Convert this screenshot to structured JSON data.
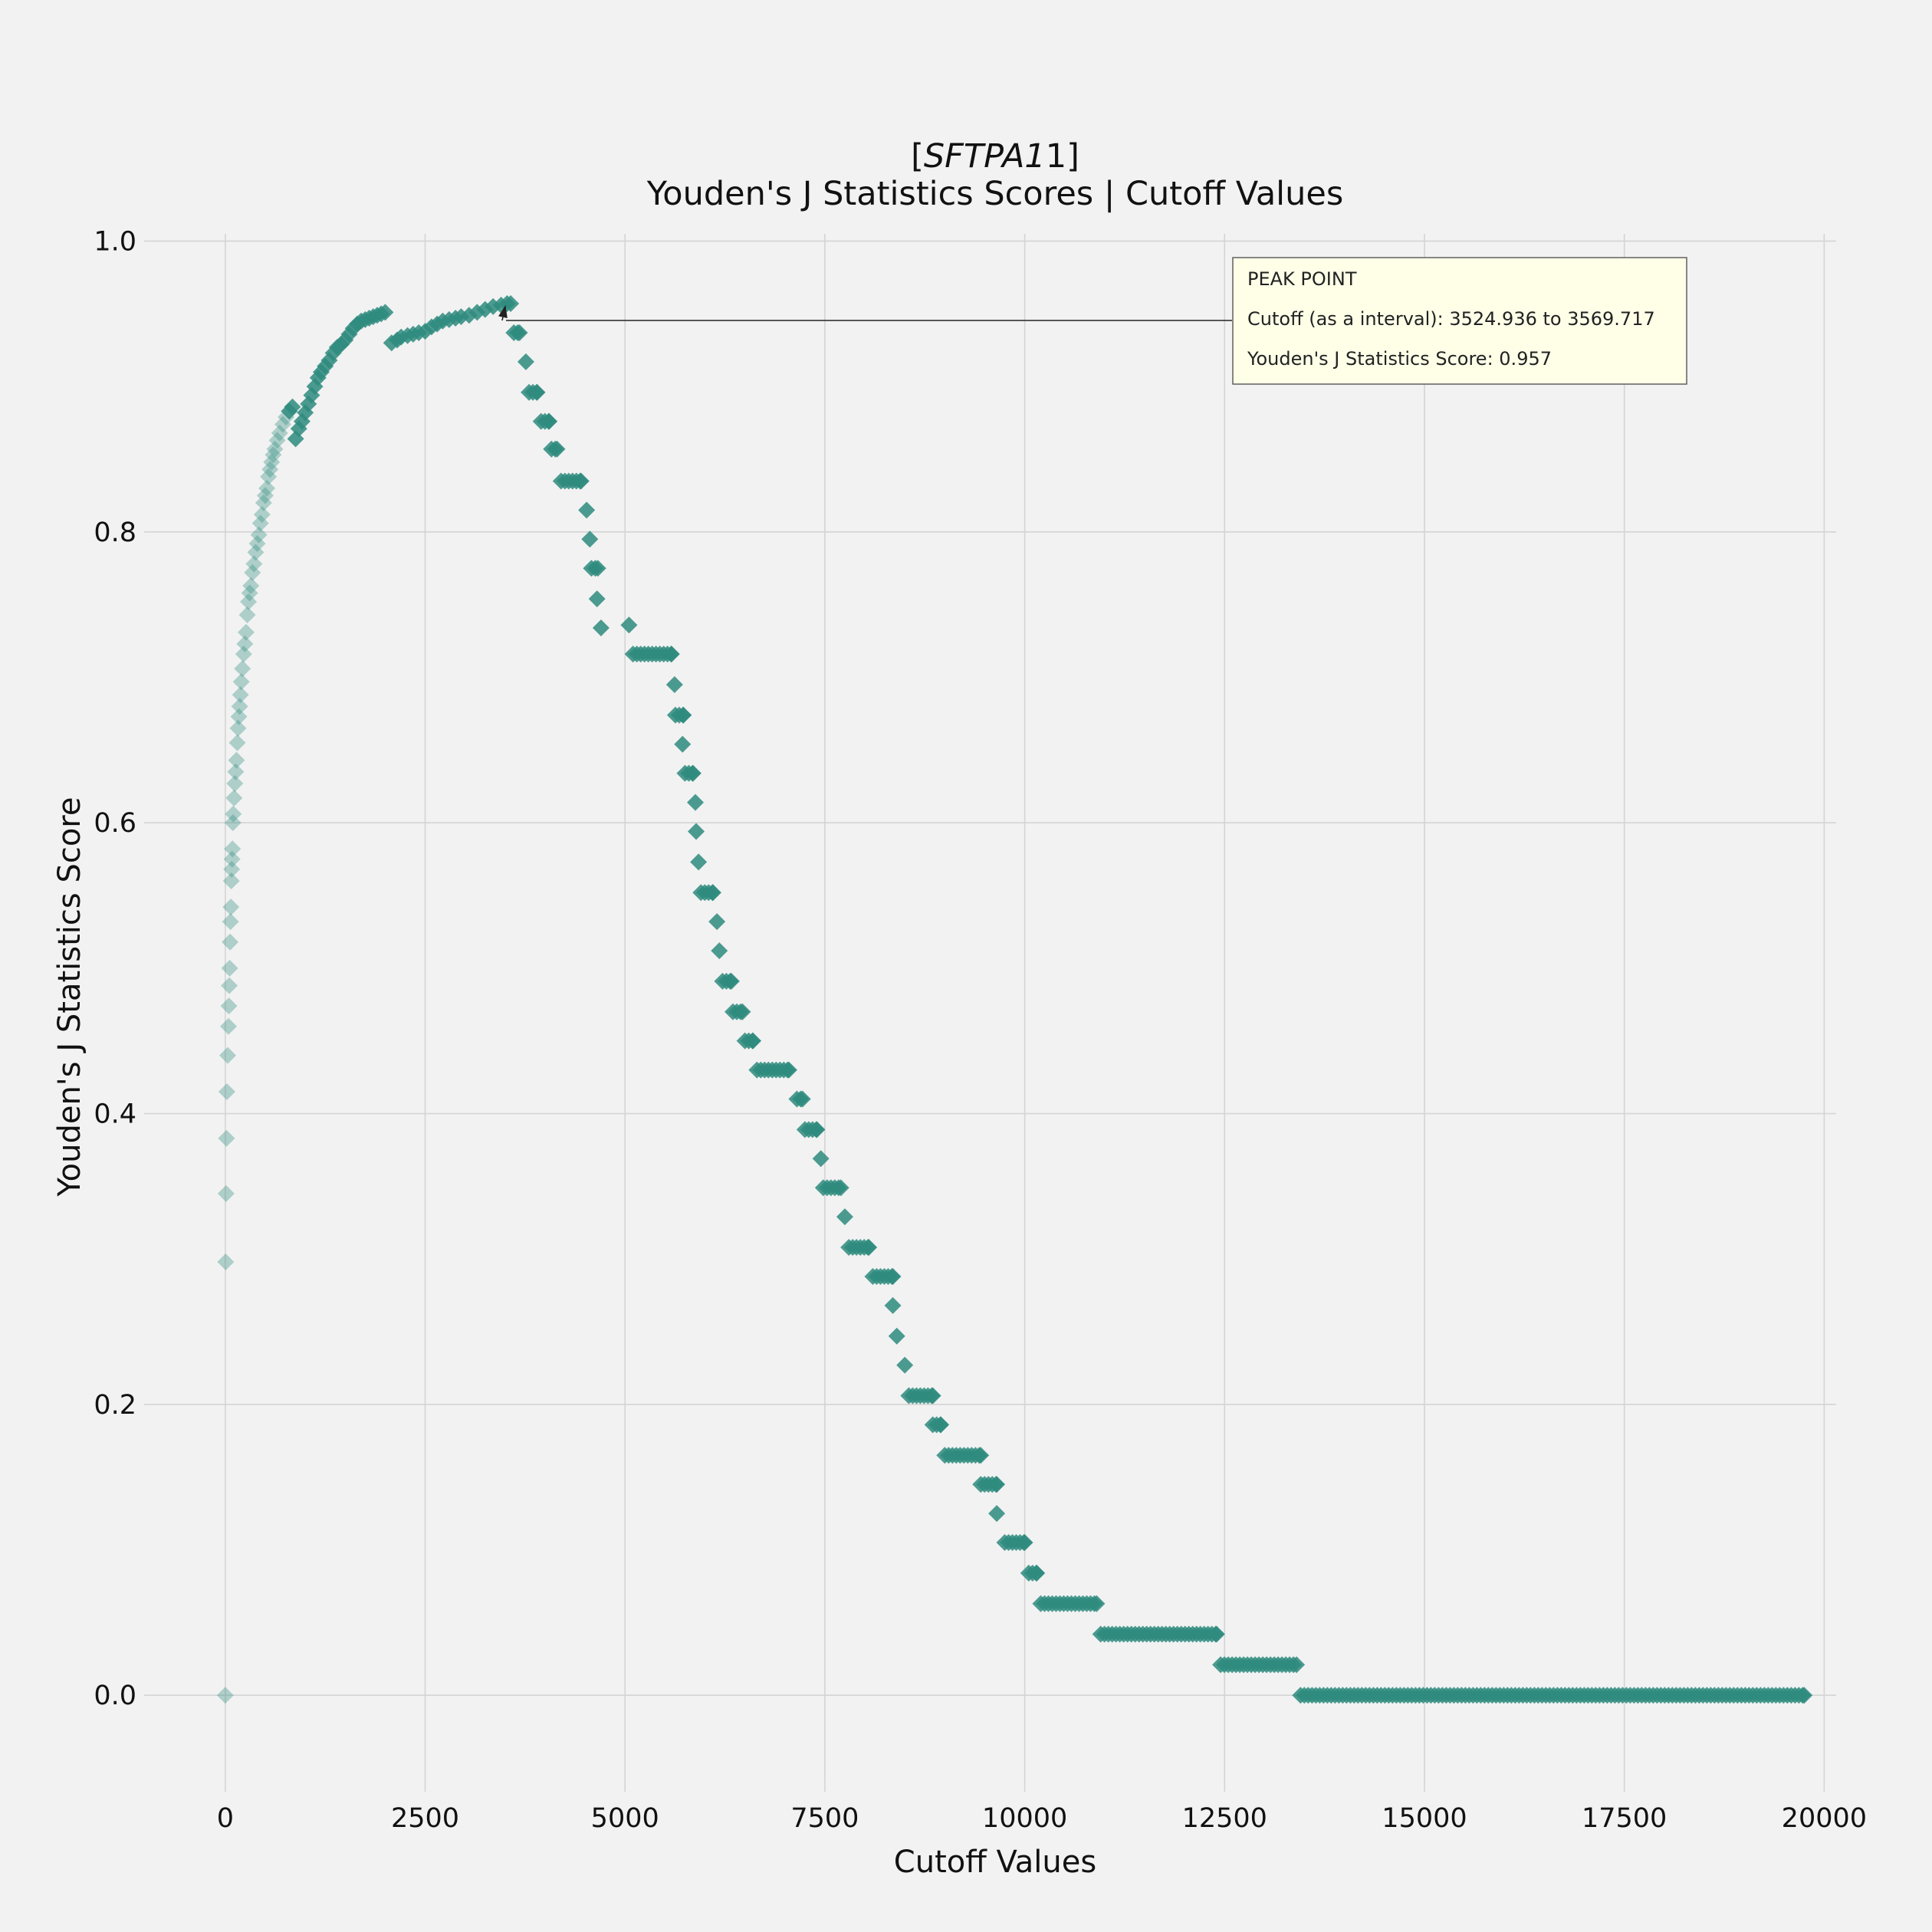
{
  "chart_data": {
    "type": "scatter",
    "title": "[SFTPA1]",
    "title_gene": "SFTPA1",
    "subtitle": "Youden's J Statistics Scores | Cutoff Values",
    "xlabel": "Cutoff Values",
    "ylabel": "Youden's J Statistics Score",
    "xlim": [
      -900,
      20150
    ],
    "ylim": [
      -0.06,
      1.005
    ],
    "xticks": [
      0,
      2500,
      5000,
      7500,
      10000,
      12500,
      15000,
      17500,
      20000
    ],
    "yticks": [
      "0.0",
      "0.2",
      "0.4",
      "0.6",
      "0.8",
      "1.0"
    ],
    "grid": true,
    "marker": "diamond",
    "color": "#2e8b7e",
    "series": [
      {
        "points": [
          [
            0,
            0.0
          ],
          [
            5,
            0.298
          ],
          [
            10,
            0.345
          ],
          [
            15,
            0.383
          ],
          [
            20,
            0.415
          ],
          [
            30,
            0.44
          ],
          [
            40,
            0.46
          ],
          [
            45,
            0.474
          ],
          [
            50,
            0.488
          ],
          [
            55,
            0.5
          ],
          [
            60,
            0.518
          ],
          [
            65,
            0.532
          ],
          [
            70,
            0.542
          ],
          [
            75,
            0.56
          ],
          [
            80,
            0.568
          ],
          [
            85,
            0.575
          ],
          [
            90,
            0.582
          ],
          [
            95,
            0.6
          ],
          [
            100,
            0.606
          ],
          [
            110,
            0.617
          ],
          [
            120,
            0.627
          ],
          [
            130,
            0.635
          ],
          [
            140,
            0.643
          ],
          [
            150,
            0.655
          ],
          [
            160,
            0.665
          ],
          [
            170,
            0.673
          ],
          [
            180,
            0.68
          ],
          [
            190,
            0.688
          ],
          [
            200,
            0.697
          ],
          [
            215,
            0.706
          ],
          [
            230,
            0.716
          ],
          [
            245,
            0.723
          ],
          [
            260,
            0.731
          ],
          [
            275,
            0.743
          ],
          [
            290,
            0.752
          ],
          [
            305,
            0.758
          ],
          [
            320,
            0.763
          ],
          [
            340,
            0.772
          ],
          [
            360,
            0.778
          ],
          [
            380,
            0.786
          ],
          [
            400,
            0.792
          ],
          [
            420,
            0.798
          ],
          [
            440,
            0.806
          ],
          [
            460,
            0.812
          ],
          [
            480,
            0.82
          ],
          [
            500,
            0.825
          ],
          [
            520,
            0.83
          ],
          [
            540,
            0.838
          ],
          [
            560,
            0.843
          ],
          [
            580,
            0.848
          ],
          [
            600,
            0.853
          ],
          [
            620,
            0.857
          ],
          [
            650,
            0.863
          ],
          [
            680,
            0.868
          ],
          [
            720,
            0.874
          ],
          [
            760,
            0.879
          ],
          [
            800,
            0.883
          ],
          [
            840,
            0.886
          ],
          [
            880,
            0.864
          ],
          [
            920,
            0.871
          ],
          [
            960,
            0.876
          ],
          [
            1000,
            0.882
          ],
          [
            1040,
            0.888
          ],
          [
            1080,
            0.894
          ],
          [
            1120,
            0.9
          ],
          [
            1160,
            0.906
          ],
          [
            1200,
            0.91
          ],
          [
            1250,
            0.914
          ],
          [
            1300,
            0.918
          ],
          [
            1350,
            0.923
          ],
          [
            1400,
            0.927
          ],
          [
            1450,
            0.929
          ],
          [
            1500,
            0.932
          ],
          [
            1550,
            0.936
          ],
          [
            1600,
            0.94
          ],
          [
            1650,
            0.943
          ],
          [
            1700,
            0.945
          ],
          [
            1750,
            0.946
          ],
          [
            1800,
            0.947
          ],
          [
            1850,
            0.948
          ],
          [
            1900,
            0.949
          ],
          [
            1950,
            0.95
          ],
          [
            2000,
            0.951
          ],
          [
            2080,
            0.93
          ],
          [
            2150,
            0.932
          ],
          [
            2200,
            0.934
          ],
          [
            2280,
            0.935
          ],
          [
            2350,
            0.936
          ],
          [
            2420,
            0.937
          ],
          [
            2500,
            0.938
          ],
          [
            2580,
            0.941
          ],
          [
            2650,
            0.943
          ],
          [
            2720,
            0.945
          ],
          [
            2800,
            0.946
          ],
          [
            2880,
            0.947
          ],
          [
            2950,
            0.948
          ],
          [
            3050,
            0.949
          ],
          [
            3150,
            0.951
          ],
          [
            3250,
            0.953
          ],
          [
            3350,
            0.955
          ],
          [
            3450,
            0.956
          ],
          [
            3524.936,
            0.957
          ],
          [
            3569.717,
            0.957
          ],
          [
            3610,
            0.937
          ],
          [
            3680,
            0.937
          ],
          [
            3760,
            0.917
          ],
          [
            3800,
            0.896
          ],
          [
            3900,
            0.896
          ],
          [
            3950,
            0.876
          ],
          [
            4050,
            0.876
          ],
          [
            4080,
            0.857
          ],
          [
            4150,
            0.857
          ],
          [
            4200,
            0.835
          ],
          [
            4450,
            0.835
          ],
          [
            4520,
            0.815
          ],
          [
            4560,
            0.795
          ],
          [
            4580,
            0.775
          ],
          [
            4660,
            0.775
          ],
          [
            4650,
            0.754
          ],
          [
            4700,
            0.734
          ],
          [
            5050,
            0.736
          ],
          [
            5100,
            0.716
          ],
          [
            5580,
            0.716
          ],
          [
            5620,
            0.695
          ],
          [
            5630,
            0.674
          ],
          [
            5730,
            0.674
          ],
          [
            5720,
            0.654
          ],
          [
            5750,
            0.634
          ],
          [
            5850,
            0.634
          ],
          [
            5880,
            0.614
          ],
          [
            5890,
            0.594
          ],
          [
            5920,
            0.573
          ],
          [
            5950,
            0.552
          ],
          [
            6100,
            0.552
          ],
          [
            6150,
            0.532
          ],
          [
            6180,
            0.512
          ],
          [
            6220,
            0.491
          ],
          [
            6330,
            0.491
          ],
          [
            6350,
            0.47
          ],
          [
            6470,
            0.47
          ],
          [
            6500,
            0.45
          ],
          [
            6600,
            0.45
          ],
          [
            6650,
            0.43
          ],
          [
            7050,
            0.43
          ],
          [
            7150,
            0.41
          ],
          [
            7220,
            0.41
          ],
          [
            7250,
            0.389
          ],
          [
            7400,
            0.389
          ],
          [
            7450,
            0.369
          ],
          [
            7480,
            0.349
          ],
          [
            7700,
            0.349
          ],
          [
            7750,
            0.329
          ],
          [
            7800,
            0.308
          ],
          [
            8050,
            0.308
          ],
          [
            8100,
            0.288
          ],
          [
            8350,
            0.288
          ],
          [
            8350,
            0.268
          ],
          [
            8400,
            0.247
          ],
          [
            8500,
            0.227
          ],
          [
            8550,
            0.206
          ],
          [
            8850,
            0.206
          ],
          [
            8850,
            0.186
          ],
          [
            8950,
            0.186
          ],
          [
            9000,
            0.165
          ],
          [
            9450,
            0.165
          ],
          [
            9450,
            0.145
          ],
          [
            9650,
            0.145
          ],
          [
            9650,
            0.125
          ],
          [
            9750,
            0.105
          ],
          [
            10000,
            0.105
          ],
          [
            10050,
            0.084
          ],
          [
            10150,
            0.084
          ],
          [
            10200,
            0.063
          ],
          [
            10900,
            0.063
          ],
          [
            10950,
            0.042
          ],
          [
            12400,
            0.042
          ],
          [
            12450,
            0.021
          ],
          [
            13400,
            0.021
          ],
          [
            13450,
            0.0
          ],
          [
            19750,
            0.0
          ]
        ]
      }
    ],
    "annotation": {
      "title": "PEAK POINT",
      "cutoff_line": "Cutoff (as a interval): 3524.936 to 3569.717",
      "score_line": "Youden's J Statistics Score: 0.957",
      "peak_x": 3524.936,
      "peak_y": 0.957
    }
  }
}
